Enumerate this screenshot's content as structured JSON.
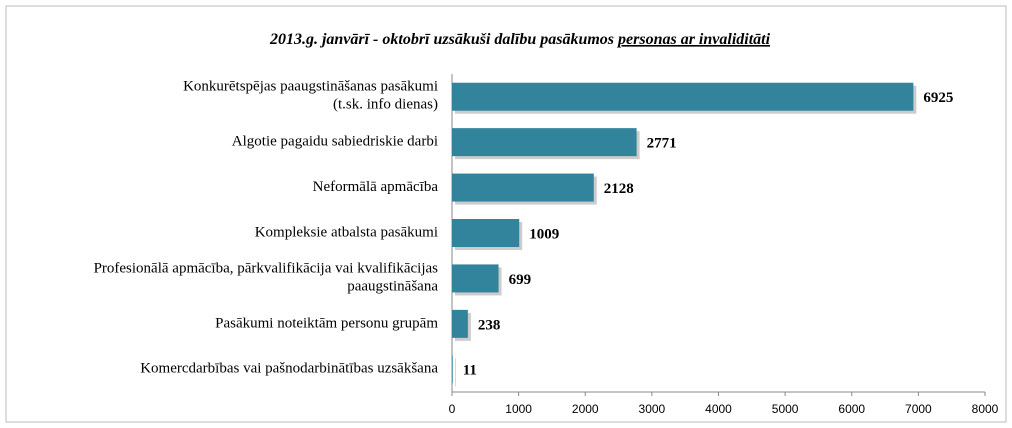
{
  "chart_data": {
    "type": "barh",
    "title": "2013.g. janvārī - oktobrī uzsākuši dalību pasākumos ",
    "title_emphasis": "personas ar invaliditāti",
    "categories": [
      "Konkurētspējas paaugstināšanas pasākumi\n(t.sk. info dienas)",
      "Algotie pagaidu sabiedriskie darbi",
      "Neformālā apmācība",
      "Kompleksie atbalsta pasākumi",
      "Profesionālā apmācība, pārkvalifikācija vai kvalifikācijas\npaaugstināšana",
      "Pasākumi noteiktām personu grupām",
      "Komercdarbības vai pašnodarbinātības uzsākšana"
    ],
    "values": [
      6925,
      2771,
      2128,
      1009,
      699,
      238,
      11
    ],
    "color": "#31849b",
    "xlim": [
      0,
      8000
    ],
    "xticks": [
      0,
      1000,
      2000,
      3000,
      4000,
      5000,
      6000,
      7000,
      8000
    ]
  }
}
